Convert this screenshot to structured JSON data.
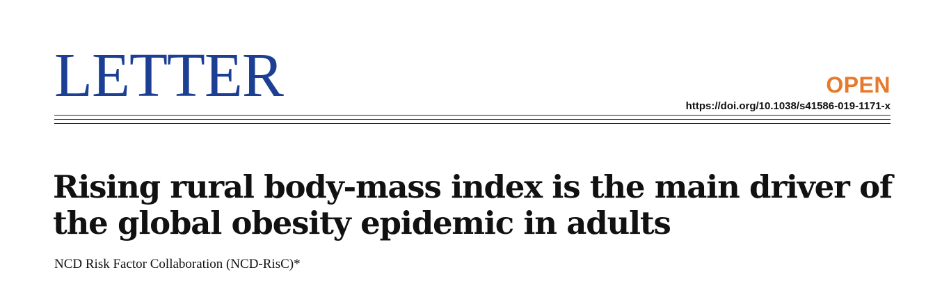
{
  "header": {
    "section_label": "LETTER",
    "access_label": "OPEN",
    "doi": "https://doi.org/10.1038/s41586-019-1171-x"
  },
  "article": {
    "title_line1": "Rising rural body-mass index is the main driver of",
    "title_line2": "the global obesity epidemic in adults",
    "authors": "NCD Risk Factor Collaboration (NCD-RisC)*"
  },
  "colors": {
    "section_label": "#1c3f94",
    "access_label": "#e8792b",
    "text": "#111111"
  }
}
